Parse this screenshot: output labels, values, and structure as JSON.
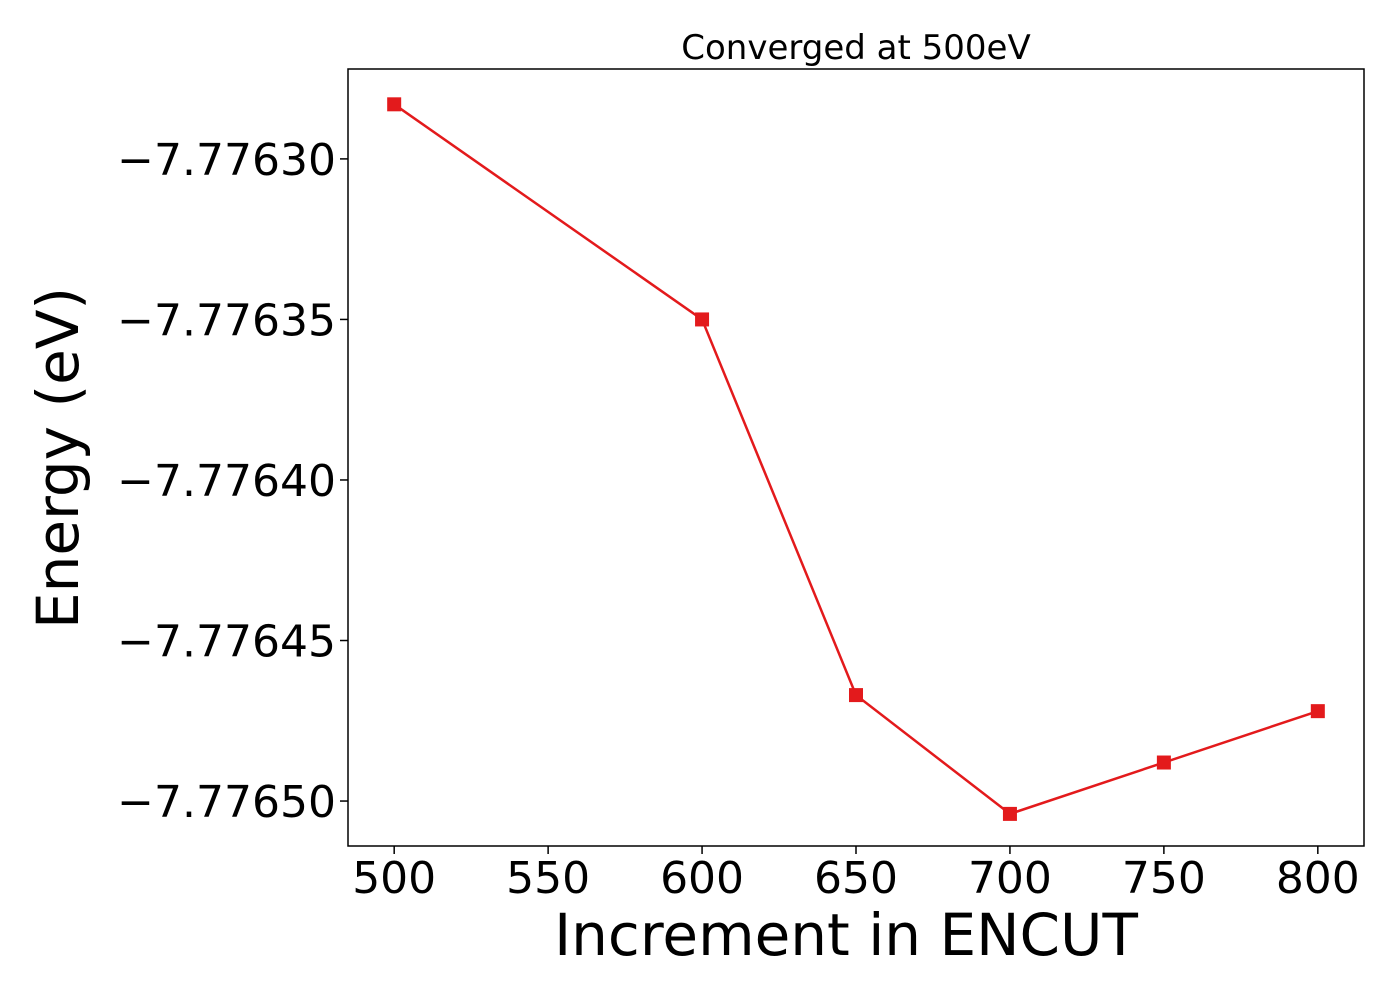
{
  "chart_data": {
    "type": "line",
    "title": "Converged at 500eV",
    "xlabel": "Increment in ENCUT",
    "ylabel": "Energy (eV)",
    "x": [
      500,
      600,
      650,
      700,
      750,
      800
    ],
    "series": [
      {
        "values": [
          -7.776283,
          -7.77635,
          -7.776467,
          -7.776504,
          -7.776488,
          -7.776472
        ],
        "color": "#e31a1c",
        "marker": "square"
      }
    ],
    "xlim": [
      485,
      815
    ],
    "ylim": [
      -7.776514,
      -7.776272
    ],
    "xticks": [
      500,
      550,
      600,
      650,
      700,
      750,
      800
    ],
    "xtick_labels": [
      "500",
      "550",
      "600",
      "650",
      "700",
      "750",
      "800"
    ],
    "yticks": [
      -7.7763,
      -7.77635,
      -7.7764,
      -7.77645,
      -7.7765
    ],
    "ytick_labels": [
      "−7.77630",
      "−7.77635",
      "−7.77640",
      "−7.77645",
      "−7.77650"
    ],
    "grid": false,
    "legend": "none"
  }
}
